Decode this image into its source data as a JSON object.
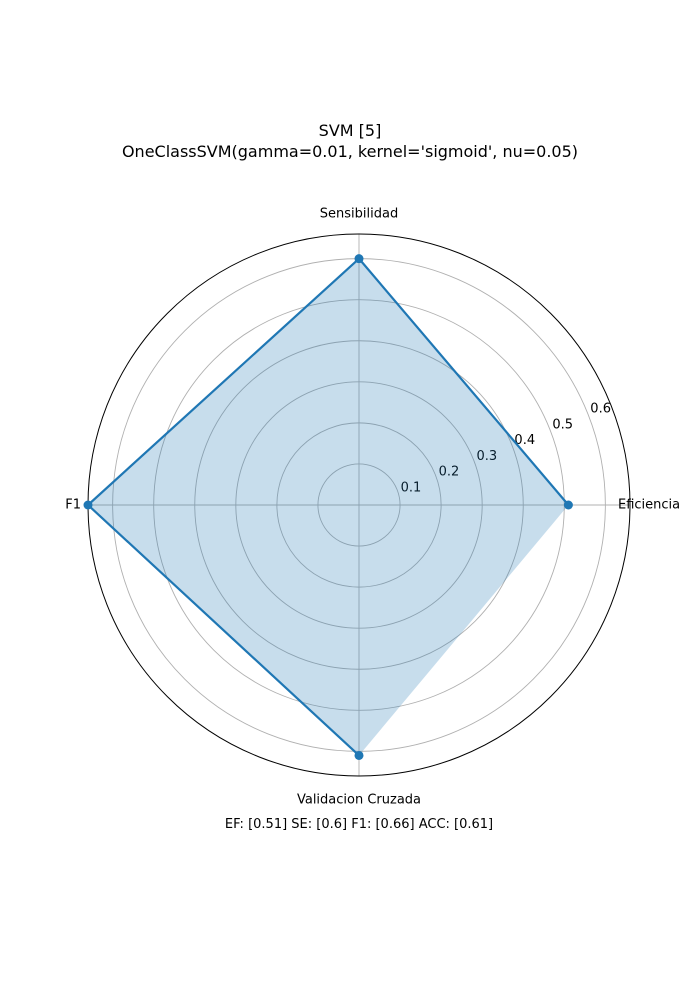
{
  "title_line1": "SVM [5]",
  "title_line2": "OneClassSVM(gamma=0.01, kernel='sigmoid', nu=0.05)",
  "footer": "EF: [0.51] SE: [0.6] F1: [0.66] ACC: [0.61]",
  "chart_data": {
    "type": "radar",
    "categories": [
      "Eficiencia",
      "Sensibilidad",
      "F1",
      "Validacion Cruzada"
    ],
    "values": [
      0.51,
      0.6,
      0.66,
      0.61
    ],
    "radial_ticks": [
      0.1,
      0.2,
      0.3,
      0.4,
      0.5,
      0.6
    ],
    "rlim": [
      0,
      0.66
    ],
    "grid": true,
    "colors": {
      "line": "#1f77b4",
      "fill": "#1f77b4",
      "grid": "#b0b0b0",
      "spine": "#000000"
    }
  }
}
